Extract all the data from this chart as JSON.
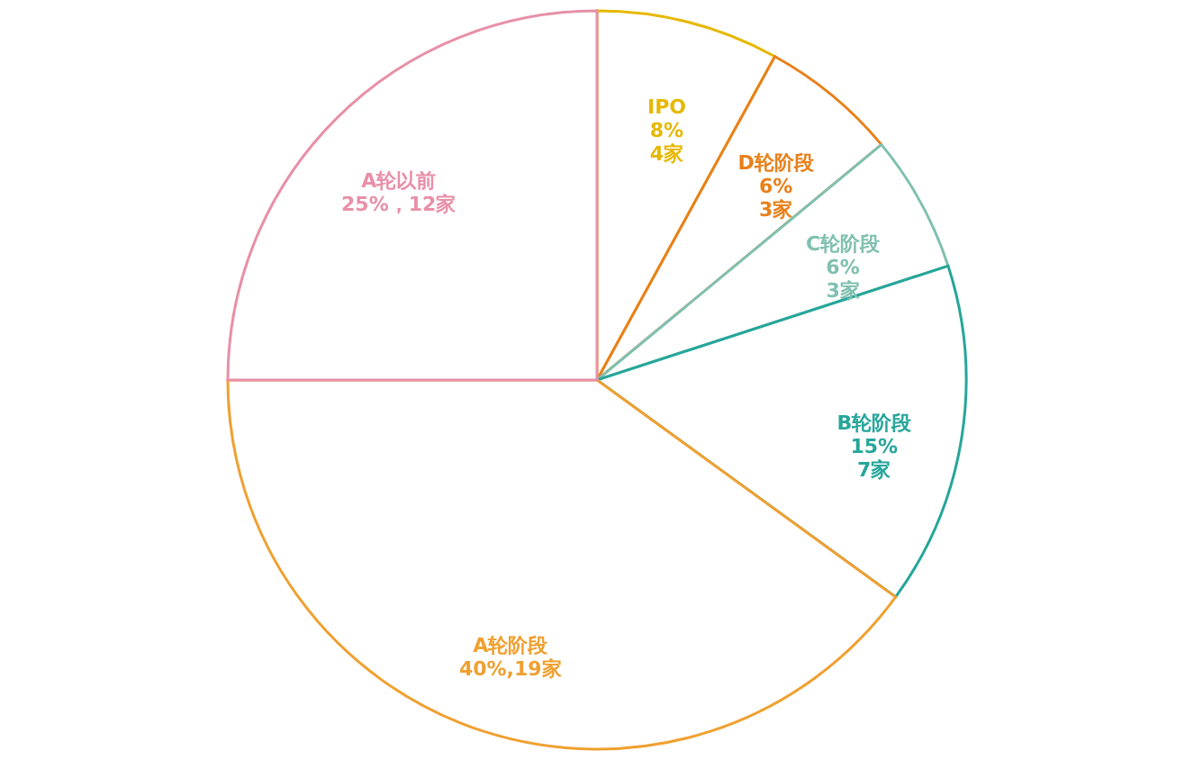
{
  "chart_data": {
    "type": "pie",
    "categories": [
      "IPO",
      "D轮阶段",
      "C轮阶段",
      "B轮阶段",
      "A轮阶段",
      "A轮以前"
    ],
    "values": [
      8,
      6,
      6,
      15,
      40,
      25
    ],
    "value_labels": [
      "8%\n4家",
      "6%\n3家",
      "6%\n3家",
      "15%\n7家",
      "40%,19家",
      "25%，12家"
    ],
    "colors": [
      "#e6b800",
      "#e8801a",
      "#80c0b0",
      "#26a69a",
      "#f0a030",
      "#e890a8"
    ]
  }
}
